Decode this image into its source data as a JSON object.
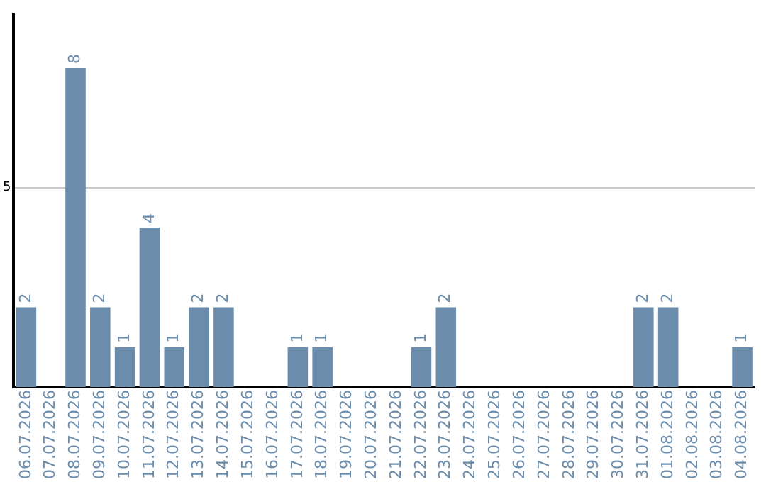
{
  "chart_data": {
    "type": "bar",
    "categories": [
      "06.07.2026",
      "07.07.2026",
      "08.07.2026",
      "09.07.2026",
      "10.07.2026",
      "11.07.2026",
      "12.07.2026",
      "13.07.2026",
      "14.07.2026",
      "15.07.2026",
      "16.07.2026",
      "17.07.2026",
      "18.07.2026",
      "19.07.2026",
      "20.07.2026",
      "21.07.2026",
      "22.07.2026",
      "23.07.2026",
      "24.07.2026",
      "25.07.2026",
      "26.07.2026",
      "27.07.2026",
      "28.07.2026",
      "29.07.2026",
      "30.07.2026",
      "31.07.2026",
      "01.08.2026",
      "02.08.2026",
      "03.08.2026",
      "04.08.2026"
    ],
    "values": [
      2,
      null,
      8,
      2,
      1,
      4,
      1,
      2,
      2,
      null,
      null,
      1,
      1,
      null,
      null,
      null,
      1,
      2,
      null,
      null,
      null,
      null,
      null,
      null,
      null,
      2,
      2,
      null,
      null,
      1
    ],
    "color": "#6b8cab",
    "ylim": [
      0,
      9.35
    ],
    "yticks": [
      5
    ],
    "grid": "y",
    "legend": false,
    "data_labels": true
  }
}
